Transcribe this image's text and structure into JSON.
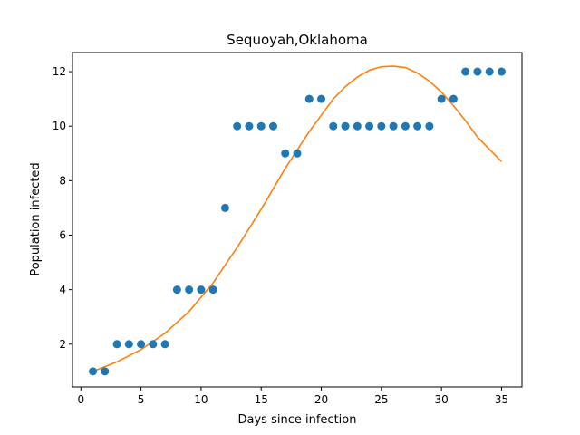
{
  "chart_data": {
    "type": "scatter",
    "title": "Sequoyah,Oklahoma",
    "xlabel": "Days since infection",
    "ylabel": "Population infected",
    "xlim": [
      -0.7,
      36.7
    ],
    "ylim": [
      0.43,
      12.7
    ],
    "xticks": [
      0,
      5,
      10,
      15,
      20,
      25,
      30,
      35
    ],
    "yticks": [
      2,
      4,
      6,
      8,
      10,
      12
    ],
    "grid": false,
    "series": [
      {
        "kind": "scatter",
        "color": "#1f77b4",
        "x": [
          1,
          2,
          3,
          4,
          5,
          6,
          7,
          8,
          9,
          10,
          11,
          12,
          13,
          14,
          15,
          16,
          17,
          18,
          19,
          20,
          21,
          22,
          23,
          24,
          25,
          26,
          27,
          28,
          29,
          30,
          31,
          32,
          33,
          34,
          35
        ],
        "y": [
          1,
          1,
          2,
          2,
          2,
          2,
          2,
          4,
          4,
          4,
          4,
          7,
          10,
          10,
          10,
          10,
          9,
          9,
          11,
          11,
          10,
          10,
          10,
          10,
          10,
          10,
          10,
          10,
          10,
          11,
          11,
          12,
          12,
          12,
          12
        ]
      },
      {
        "kind": "line",
        "color": "#ff7f0e",
        "x": [
          1,
          3,
          5,
          7,
          9,
          11,
          13,
          15,
          17,
          19,
          21,
          22,
          23,
          24,
          25,
          26,
          27,
          28,
          29,
          30,
          31,
          32,
          33,
          34,
          35
        ],
        "y": [
          1.0,
          1.35,
          1.8,
          2.4,
          3.2,
          4.25,
          5.55,
          6.95,
          8.45,
          9.8,
          11.0,
          11.45,
          11.8,
          12.05,
          12.18,
          12.2,
          12.15,
          11.95,
          11.65,
          11.25,
          10.75,
          10.2,
          9.6,
          9.15,
          8.7
        ]
      }
    ]
  }
}
